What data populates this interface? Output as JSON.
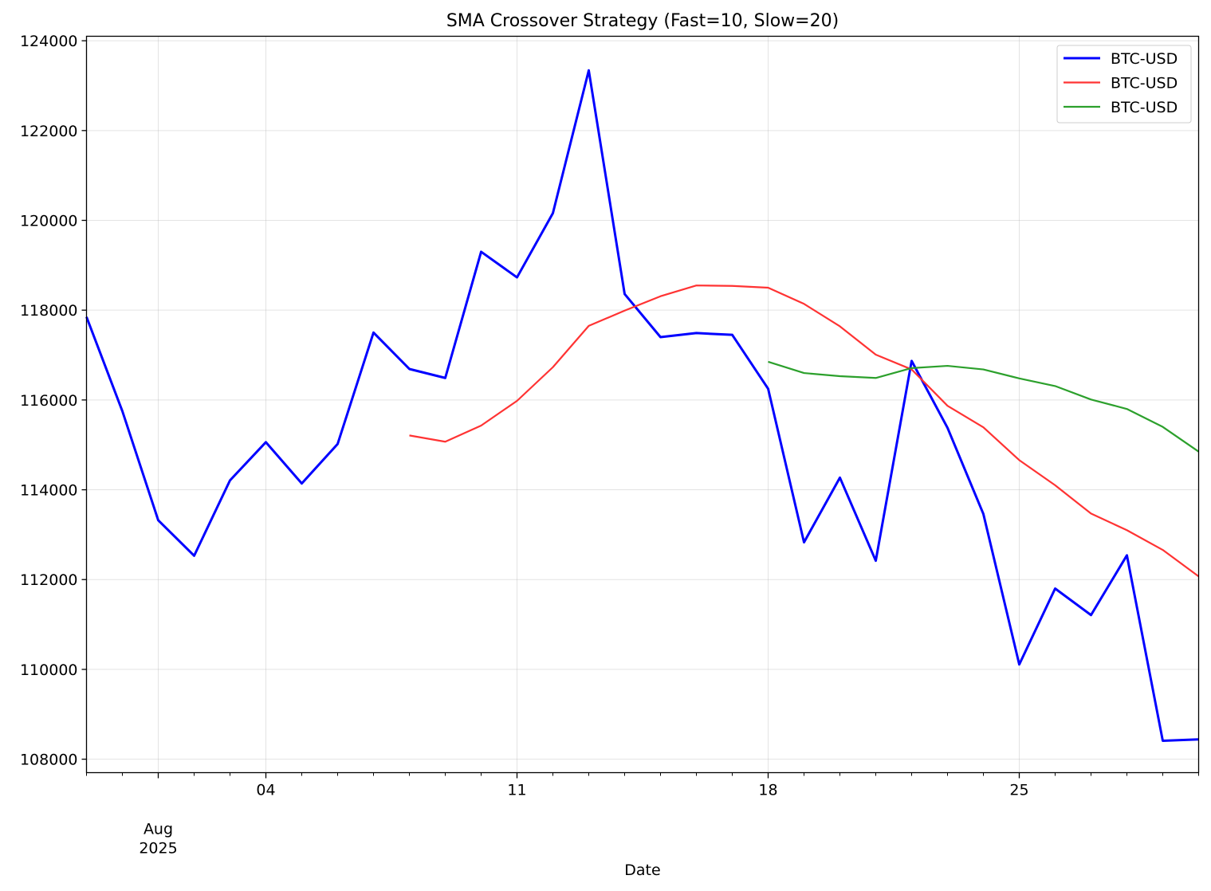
{
  "chart_data": {
    "type": "line",
    "title": "SMA Crossover Strategy (Fast=10, Slow=20)",
    "xlabel": "Date",
    "ylabel": "",
    "xlim": [
      "2025-07-30",
      "2025-08-30"
    ],
    "ylim": [
      107700,
      124100
    ],
    "y_ticks": [
      108000,
      110000,
      112000,
      114000,
      116000,
      118000,
      120000,
      122000,
      124000
    ],
    "x_ticks": [
      {
        "date": "2025-08-01",
        "label": "Aug",
        "sublabel": "2025"
      },
      {
        "date": "2025-08-04",
        "label": "04"
      },
      {
        "date": "2025-08-11",
        "label": "11"
      },
      {
        "date": "2025-08-18",
        "label": "18"
      },
      {
        "date": "2025-08-25",
        "label": "25"
      }
    ],
    "grid": true,
    "legend_position": "top-right",
    "x": [
      "2025-07-30",
      "2025-07-31",
      "2025-08-01",
      "2025-08-02",
      "2025-08-03",
      "2025-08-04",
      "2025-08-05",
      "2025-08-06",
      "2025-08-07",
      "2025-08-08",
      "2025-08-09",
      "2025-08-10",
      "2025-08-11",
      "2025-08-12",
      "2025-08-13",
      "2025-08-14",
      "2025-08-15",
      "2025-08-16",
      "2025-08-17",
      "2025-08-18",
      "2025-08-19",
      "2025-08-20",
      "2025-08-21",
      "2025-08-22",
      "2025-08-23",
      "2025-08-24",
      "2025-08-25",
      "2025-08-26",
      "2025-08-27",
      "2025-08-28",
      "2025-08-29",
      "2025-08-30"
    ],
    "series": [
      {
        "name": "BTC-USD",
        "color": "#0000ff",
        "values": [
          117850,
          115750,
          113320,
          112530,
          114210,
          115060,
          114140,
          115020,
          117500,
          116690,
          116490,
          119300,
          118730,
          120160,
          123340,
          118360,
          117400,
          117490,
          117450,
          116250,
          112830,
          114270,
          112420,
          116870,
          115380,
          113460,
          110110,
          111800,
          111210,
          112540,
          108410,
          108440
        ]
      },
      {
        "name": "BTC-USD",
        "color": "#ff3333",
        "values": [
          null,
          null,
          null,
          null,
          null,
          null,
          null,
          null,
          null,
          115210,
          115070,
          115430,
          115980,
          116730,
          117650,
          117990,
          118310,
          118550,
          118540,
          118500,
          118140,
          117640,
          117010,
          116680,
          115870,
          115390,
          114660,
          114100,
          113470,
          113100,
          112660,
          112070
        ]
      },
      {
        "name": "BTC-USD",
        "color": "#2ca02c",
        "values": [
          null,
          null,
          null,
          null,
          null,
          null,
          null,
          null,
          null,
          null,
          null,
          null,
          null,
          null,
          null,
          null,
          null,
          null,
          null,
          116850,
          116600,
          116530,
          116490,
          116710,
          116760,
          116680,
          116480,
          116310,
          116010,
          115800,
          115400,
          114850
        ]
      }
    ]
  }
}
